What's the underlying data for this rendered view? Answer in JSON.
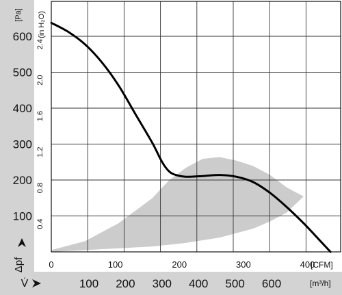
{
  "chart_data": {
    "type": "line",
    "title": "",
    "xlabel": "V̇",
    "ylabel": "Δpf",
    "x_unit_primary": "[CFM]",
    "x_unit_secondary": "[m³/h]",
    "y_unit_primary": "[Pa]",
    "y_unit_secondary": "(in H₂O)",
    "xlim": [
      0,
      430
    ],
    "ylim": [
      0,
      700
    ],
    "x_ticks_cfm": [
      "0",
      "100",
      "200",
      "300",
      "400"
    ],
    "x_ticks_m3h": [
      "100",
      "200",
      "300",
      "400",
      "500",
      "600"
    ],
    "y_ticks_pa": [
      "100",
      "200",
      "300",
      "400",
      "500",
      "600"
    ],
    "y_ticks_inh2o": [
      "0.4",
      "0.8",
      "1.2",
      "1.6",
      "2.0",
      "2.4"
    ],
    "grid": true,
    "series": [
      {
        "x": [
          0,
          25,
          50,
          75,
          100,
          125,
          150,
          165,
          175,
          185,
          200,
          225,
          250,
          275,
          300,
          325,
          350,
          375,
          400,
          415
        ],
        "y": [
          640,
          615,
          580,
          530,
          465,
          385,
          305,
          250,
          225,
          215,
          210,
          212,
          215,
          210,
          195,
          165,
          125,
          80,
          30,
          0
        ],
        "color": "#000000"
      }
    ],
    "operating_area": {
      "color": "#cccccc",
      "upper": {
        "x": [
          0,
          50,
          100,
          150,
          175,
          200,
          225,
          250,
          275,
          300,
          325,
          350,
          375
        ],
        "y": [
          5,
          30,
          80,
          150,
          200,
          235,
          260,
          265,
          255,
          240,
          215,
          180,
          155
        ]
      },
      "lower": {
        "x": [
          0,
          50,
          100,
          150,
          200,
          250,
          300,
          325,
          350,
          375
        ],
        "y": [
          0,
          5,
          10,
          15,
          25,
          40,
          65,
          85,
          110,
          155
        ]
      }
    }
  }
}
